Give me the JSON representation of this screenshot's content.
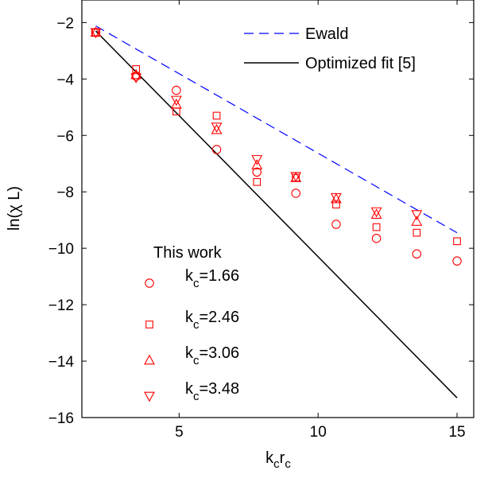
{
  "chart_data": {
    "type": "scatter",
    "title": "",
    "xlabel": {
      "main": "k",
      "sub1": "c",
      "mid": "r",
      "sub2": "c"
    },
    "ylabel": "ln(χ L)",
    "xlim": [
      1.5,
      15.6
    ],
    "ylim": [
      -16,
      -1.2
    ],
    "xticks": [
      5,
      10,
      15
    ],
    "yticks": [
      -16,
      -14,
      -12,
      -10,
      -8,
      -6,
      -4,
      -2
    ],
    "grid": false,
    "legend_placement": "top-right",
    "lines": [
      {
        "name": "Ewald",
        "style": "dashed",
        "color": "#0000ff",
        "x": [
          2.0,
          15.0
        ],
        "y": [
          -2.12,
          -9.45
        ]
      },
      {
        "name": "Optimized fit [5]",
        "style": "solid",
        "color": "#000000",
        "x": [
          2.0,
          15.0
        ],
        "y": [
          -2.3,
          -15.3
        ]
      }
    ],
    "scatter_title": "This work",
    "scatter_color": "#ff0000",
    "series": [
      {
        "marker": "circle",
        "label_main": "k",
        "label_sub": "c",
        "label_rest": "=1.66",
        "x": [
          2.0,
          3.45,
          4.9,
          6.35,
          7.8,
          9.2,
          10.65,
          12.1,
          13.55,
          15.0
        ],
        "y": [
          -2.35,
          -3.9,
          -4.4,
          -6.5,
          -7.3,
          -8.05,
          -9.15,
          -9.65,
          -10.2,
          -10.45
        ]
      },
      {
        "marker": "square",
        "label_main": "k",
        "label_sub": "c",
        "label_rest": "=2.46",
        "x": [
          2.0,
          3.45,
          4.9,
          6.35,
          7.8,
          9.2,
          10.65,
          12.1,
          13.55,
          15.0
        ],
        "y": [
          -2.35,
          -3.65,
          -5.15,
          -5.3,
          -7.65,
          -7.5,
          -8.45,
          -9.25,
          -9.45,
          -9.75
        ]
      },
      {
        "marker": "triangle-up",
        "label_main": "k",
        "label_sub": "c",
        "label_rest": "=3.06",
        "x": [
          2.0,
          3.45,
          4.9,
          6.35,
          7.8,
          9.2,
          10.65,
          12.1,
          13.55
        ],
        "y": [
          -2.35,
          -3.85,
          -4.9,
          -5.8,
          -7.05,
          -7.5,
          -8.25,
          -8.8,
          -9.05
        ]
      },
      {
        "marker": "triangle-down",
        "label_main": "k",
        "label_sub": "c",
        "label_rest": "=3.48",
        "x": [
          2.0,
          3.45,
          4.9,
          6.35,
          7.8,
          9.2,
          10.65,
          12.1,
          13.55
        ],
        "y": [
          -2.35,
          -3.95,
          -4.75,
          -5.7,
          -6.85,
          -7.45,
          -8.2,
          -8.7,
          -8.8
        ]
      }
    ]
  }
}
